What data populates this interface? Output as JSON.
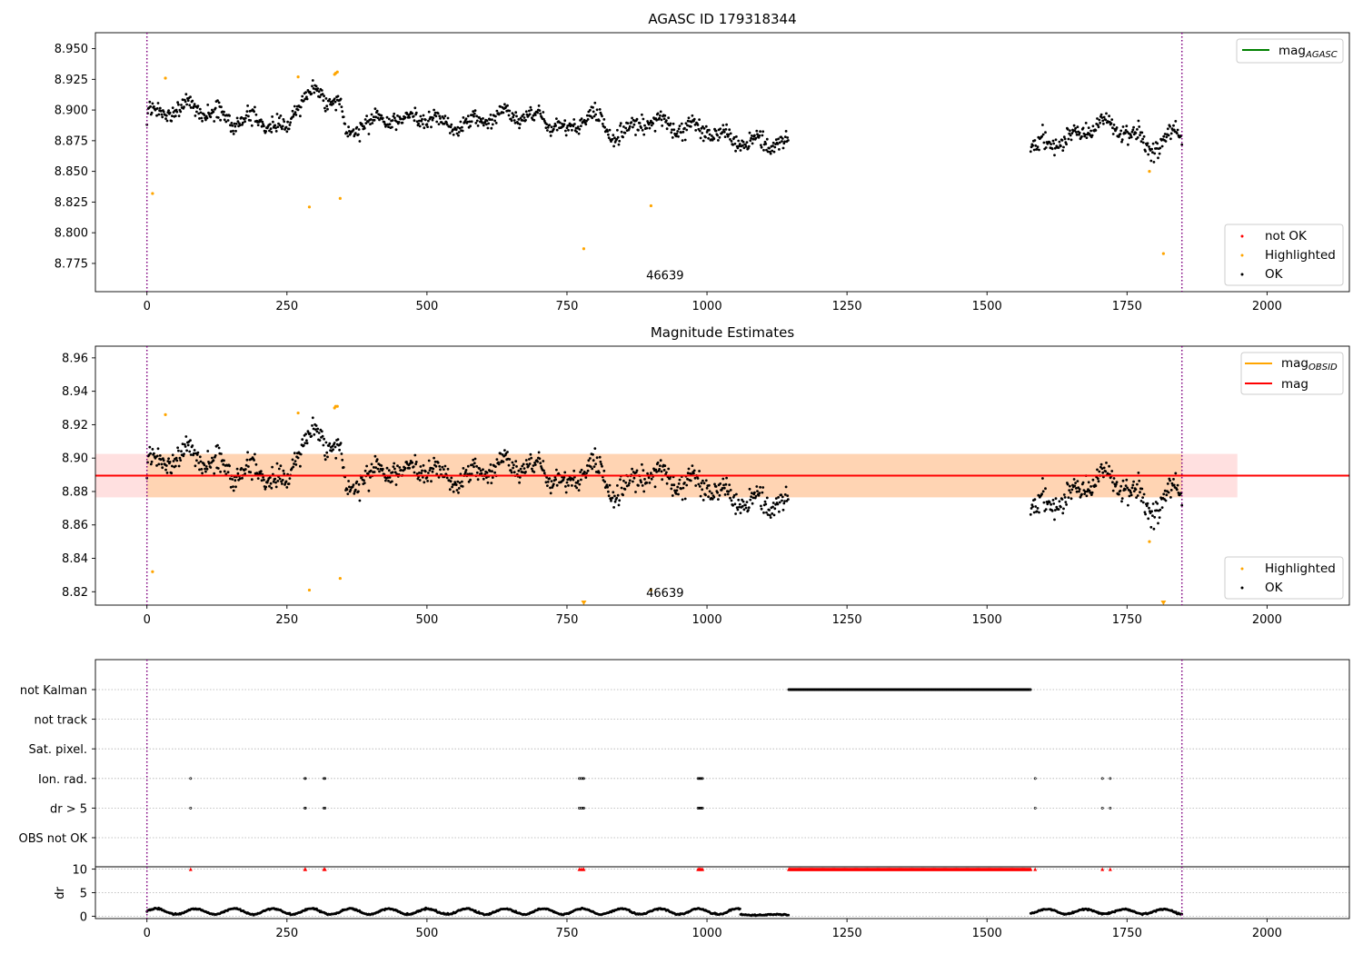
{
  "chart_data": [
    {
      "type": "scatter",
      "title": "AGASC ID 179318344",
      "xlim": [
        -92,
        2147
      ],
      "ylim": [
        8.752,
        8.963
      ],
      "x_ticks": [
        0,
        250,
        500,
        750,
        1000,
        1250,
        1500,
        1750,
        2000
      ],
      "x_tick_labels": [
        "0",
        "250",
        "500",
        "750",
        "1000",
        "1250",
        "1500",
        "1750",
        "2000"
      ],
      "y_ticks": [
        8.775,
        8.8,
        8.825,
        8.85,
        8.875,
        8.9,
        8.925,
        8.95
      ],
      "y_tick_labels": [
        "8.775",
        "8.800",
        "8.825",
        "8.850",
        "8.875",
        "8.900",
        "8.925",
        "8.950"
      ],
      "grid": false,
      "obsid_label": "46639",
      "obsid_label_position": [
        925,
        8.762
      ],
      "obs_boundaries": [
        0,
        1848
      ],
      "line_legend": {
        "placement": "top-right",
        "entries": [
          {
            "name": "mag",
            "sub": "AGASC",
            "color": "#008000"
          }
        ]
      },
      "point_legend": {
        "placement": "bottom-right",
        "entries": [
          {
            "name": "not OK",
            "color": "#ff0000"
          },
          {
            "name": "Highlighted",
            "color": "#ffa500"
          },
          {
            "name": "OK",
            "color": "#000000"
          }
        ]
      },
      "series": [
        {
          "name": "Highlighted",
          "color": "#ffa500",
          "x": [
            10,
            33,
            270,
            290,
            335,
            337,
            340,
            345,
            780,
            900,
            1790,
            1815
          ],
          "y": [
            8.832,
            8.926,
            8.927,
            8.821,
            8.929,
            8.93,
            8.931,
            8.828,
            8.787,
            8.822,
            8.85,
            8.783
          ]
        },
        {
          "name": "OK",
          "color": "#000000",
          "segments": [
            {
              "x_range": [
                0,
                1146
              ],
              "y_profile": [
                [
                  0,
                  8.896
                ],
                [
                  70,
                  8.903
                ],
                [
                  150,
                  8.893
                ],
                [
                  210,
                  8.892
                ],
                [
                  250,
                  8.882
                ],
                [
                  265,
                  8.905
                ],
                [
                  300,
                  8.913
                ],
                [
                  345,
                  8.905
                ],
                [
                  355,
                  8.878
                ],
                [
                  390,
                  8.89
                ],
                [
                  500,
                  8.893
                ],
                [
                  550,
                  8.888
                ],
                [
                  650,
                  8.897
                ],
                [
                  730,
                  8.89
                ],
                [
                  750,
                  8.88
                ],
                [
                  790,
                  8.9
                ],
                [
                  830,
                  8.878
                ],
                [
                  900,
                  8.892
                ],
                [
                  950,
                  8.885
                ],
                [
                  1000,
                  8.885
                ],
                [
                  1050,
                  8.875
                ],
                [
                  1146,
                  8.873
                ]
              ],
              "scatter": 0.007
            },
            {
              "x_range": [
                1578,
                1848
              ],
              "y_profile": [
                [
                  1578,
                  8.87
                ],
                [
                  1650,
                  8.877
                ],
                [
                  1710,
                  8.89
                ],
                [
                  1760,
                  8.88
                ],
                [
                  1800,
                  8.868
                ],
                [
                  1848,
                  8.885
                ]
              ],
              "scatter": 0.008
            }
          ]
        }
      ]
    },
    {
      "type": "scatter",
      "title": "Magnitude Estimates",
      "xlim": [
        -92,
        2147
      ],
      "ylim": [
        8.812,
        8.967
      ],
      "x_ticks": [
        0,
        250,
        500,
        750,
        1000,
        1250,
        1500,
        1750,
        2000
      ],
      "x_tick_labels": [
        "0",
        "250",
        "500",
        "750",
        "1000",
        "1250",
        "1500",
        "1750",
        "2000"
      ],
      "y_ticks": [
        8.82,
        8.84,
        8.86,
        8.88,
        8.9,
        8.92,
        8.94,
        8.96
      ],
      "y_tick_labels": [
        "8.82",
        "8.84",
        "8.86",
        "8.88",
        "8.90",
        "8.92",
        "8.94",
        "8.96"
      ],
      "grid": false,
      "obsid_label": "46639",
      "obsid_label_position": [
        925,
        8.817
      ],
      "obs_boundaries": [
        0,
        1848
      ],
      "mag": 8.8895,
      "mag_band": [
        8.8765,
        8.9025
      ],
      "mag_band_x": [
        -92,
        1947
      ],
      "mag_obsid": 8.8895,
      "mag_obsid_band": [
        8.8765,
        8.9025
      ],
      "mag_obsid_x": [
        0,
        1848
      ],
      "line_legend": {
        "placement": "top-right",
        "entries": [
          {
            "name": "mag",
            "sub": "OBSID",
            "color": "#ffa500"
          },
          {
            "name": "mag",
            "sub": "",
            "color": "#ff0000"
          }
        ]
      },
      "point_legend": {
        "placement": "bottom-right",
        "entries": [
          {
            "name": "Highlighted",
            "color": "#ffa500"
          },
          {
            "name": "OK",
            "color": "#000000"
          }
        ]
      },
      "series": [
        {
          "name": "Highlighted",
          "color": "#ffa500",
          "x": [
            10,
            33,
            270,
            290,
            335,
            337,
            340,
            345,
            900,
            1790
          ],
          "y": [
            8.832,
            8.926,
            8.927,
            8.821,
            8.93,
            8.931,
            8.931,
            8.828,
            8.821,
            8.85
          ],
          "clipped_x": [
            780,
            1815
          ]
        },
        {
          "name": "OK",
          "color": "#000000",
          "segments": [
            {
              "x_range": [
                0,
                1146
              ],
              "y_profile": [
                [
                  0,
                  8.896
                ],
                [
                  70,
                  8.903
                ],
                [
                  150,
                  8.893
                ],
                [
                  210,
                  8.892
                ],
                [
                  250,
                  8.882
                ],
                [
                  265,
                  8.905
                ],
                [
                  300,
                  8.913
                ],
                [
                  345,
                  8.905
                ],
                [
                  355,
                  8.878
                ],
                [
                  390,
                  8.89
                ],
                [
                  500,
                  8.893
                ],
                [
                  550,
                  8.888
                ],
                [
                  650,
                  8.897
                ],
                [
                  730,
                  8.89
                ],
                [
                  750,
                  8.88
                ],
                [
                  790,
                  8.9
                ],
                [
                  830,
                  8.878
                ],
                [
                  900,
                  8.892
                ],
                [
                  950,
                  8.885
                ],
                [
                  1000,
                  8.885
                ],
                [
                  1050,
                  8.875
                ],
                [
                  1146,
                  8.873
                ]
              ],
              "scatter": 0.007
            },
            {
              "x_range": [
                1578,
                1848
              ],
              "y_profile": [
                [
                  1578,
                  8.87
                ],
                [
                  1650,
                  8.877
                ],
                [
                  1710,
                  8.89
                ],
                [
                  1760,
                  8.88
                ],
                [
                  1800,
                  8.868
                ],
                [
                  1848,
                  8.885
                ]
              ],
              "scatter": 0.008
            }
          ]
        }
      ]
    },
    {
      "type": "scatter",
      "title": "",
      "xlim": [
        -92,
        2147
      ],
      "x_ticks": [
        0,
        250,
        500,
        750,
        1000,
        1250,
        1500,
        1750,
        2000
      ],
      "x_tick_labels": [
        "0",
        "250",
        "500",
        "750",
        "1000",
        "1250",
        "1500",
        "1750",
        "2000"
      ],
      "obs_boundaries": [
        0,
        1848
      ],
      "flags": {
        "categories": [
          "not Kalman",
          "not track",
          "Sat. pixel.",
          "Ion. rad.",
          "dr > 5",
          "OBS not OK"
        ],
        "grid": "dotted",
        "not_kalman_ranges": [
          [
            1146,
            1578
          ]
        ],
        "ion_rad_x": [
          78,
          282,
          283,
          316,
          318,
          772,
          775,
          778,
          780,
          984,
          986,
          988,
          990,
          992,
          1586,
          1706,
          1720
        ],
        "dr_gt_5_x": [
          78,
          282,
          283,
          316,
          318,
          772,
          775,
          778,
          780,
          984,
          986,
          988,
          990,
          992,
          1586,
          1706,
          1720
        ]
      },
      "dr": {
        "ylabel": "dr",
        "ylim": [
          -0.5,
          10.5
        ],
        "y_ticks": [
          0,
          5,
          10
        ],
        "y_tick_labels": [
          "0",
          "5",
          "10"
        ],
        "grid": "dotted",
        "clipped_value": 10,
        "clipped_color": "#ff0000",
        "clipped_x": [
          78,
          282,
          283,
          316,
          318,
          772,
          775,
          778,
          780,
          984,
          986,
          988,
          990,
          992,
          1586,
          1706,
          1720
        ],
        "clipped_ranges": [
          [
            1146,
            1578
          ]
        ],
        "segments": [
          {
            "x_range": [
              0,
              1060
            ],
            "level": 1.0,
            "wave": 0.6
          },
          {
            "x_range": [
              1060,
              1146
            ],
            "level": 0.3,
            "wave": 0.1
          },
          {
            "x_range": [
              1578,
              1848
            ],
            "level": 1.0,
            "wave": 0.5
          }
        ]
      }
    }
  ]
}
